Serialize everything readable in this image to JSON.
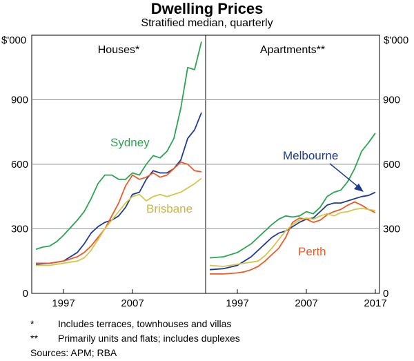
{
  "title": "Dwelling Prices",
  "subtitle": "Stratified median, quarterly",
  "unit_label_left": "$'000",
  "unit_label_right": "$'000",
  "colors": {
    "sydney": "#2aa552",
    "melbourne": "#1f3a93",
    "perth": "#ee5a24",
    "brisbane": "#d4c54a",
    "grid": "#9a9a9a"
  },
  "notes": [
    {
      "mark": "*",
      "text": "Includes terraces, townhouses and villas"
    },
    {
      "mark": "**",
      "text": "Primarily units and flats; includes duplexes"
    }
  ],
  "sources": "Sources: APM; RBA",
  "chart_data": [
    {
      "type": "line",
      "panel_title": "Houses*",
      "ylim": [
        0,
        1200
      ],
      "yticks": [
        0,
        300,
        600,
        900
      ],
      "xlim": [
        1993,
        2017
      ],
      "xticks": [
        1997,
        2007
      ],
      "series_labels": {
        "sydney": "Sydney",
        "brisbane": "Brisbane"
      },
      "series": [
        {
          "name": "Sydney",
          "key": "sydney",
          "points": [
            [
              1993,
              205
            ],
            [
              1994,
              215
            ],
            [
              1995,
              220
            ],
            [
              1996,
              240
            ],
            [
              1997,
              270
            ],
            [
              1998,
              305
            ],
            [
              1999,
              340
            ],
            [
              2000,
              380
            ],
            [
              2001,
              440
            ],
            [
              2002,
              510
            ],
            [
              2003,
              550
            ],
            [
              2004,
              550
            ],
            [
              2005,
              530
            ],
            [
              2006,
              530
            ],
            [
              2007,
              560
            ],
            [
              2008,
              550
            ],
            [
              2009,
              600
            ],
            [
              2010,
              640
            ],
            [
              2011,
              630
            ],
            [
              2012,
              660
            ],
            [
              2013,
              720
            ],
            [
              2014,
              860
            ],
            [
              2015,
              1050
            ],
            [
              2016,
              1040
            ],
            [
              2017,
              1170
            ]
          ]
        },
        {
          "name": "Melbourne",
          "key": "melbourne",
          "points": [
            [
              1993,
              135
            ],
            [
              1995,
              140
            ],
            [
              1997,
              150
            ],
            [
              1998,
              170
            ],
            [
              1999,
              190
            ],
            [
              2000,
              230
            ],
            [
              2001,
              280
            ],
            [
              2002,
              310
            ],
            [
              2003,
              330
            ],
            [
              2004,
              340
            ],
            [
              2005,
              360
            ],
            [
              2006,
              400
            ],
            [
              2007,
              460
            ],
            [
              2008,
              470
            ],
            [
              2009,
              530
            ],
            [
              2010,
              570
            ],
            [
              2011,
              560
            ],
            [
              2012,
              560
            ],
            [
              2013,
              580
            ],
            [
              2014,
              620
            ],
            [
              2015,
              720
            ],
            [
              2016,
              760
            ],
            [
              2017,
              840
            ]
          ]
        },
        {
          "name": "Perth",
          "key": "perth",
          "points": [
            [
              1993,
              140
            ],
            [
              1995,
              140
            ],
            [
              1997,
              150
            ],
            [
              1998,
              160
            ],
            [
              1999,
              170
            ],
            [
              2000,
              190
            ],
            [
              2001,
              220
            ],
            [
              2002,
              260
            ],
            [
              2003,
              300
            ],
            [
              2004,
              360
            ],
            [
              2005,
              420
            ],
            [
              2006,
              500
            ],
            [
              2007,
              550
            ],
            [
              2008,
              530
            ],
            [
              2009,
              540
            ],
            [
              2010,
              560
            ],
            [
              2011,
              540
            ],
            [
              2012,
              550
            ],
            [
              2013,
              580
            ],
            [
              2014,
              610
            ],
            [
              2015,
              600
            ],
            [
              2016,
              570
            ],
            [
              2017,
              565
            ]
          ]
        },
        {
          "name": "Brisbane",
          "key": "brisbane",
          "points": [
            [
              1993,
              130
            ],
            [
              1995,
              130
            ],
            [
              1997,
              140
            ],
            [
              1998,
              145
            ],
            [
              1999,
              150
            ],
            [
              2000,
              165
            ],
            [
              2001,
              200
            ],
            [
              2002,
              250
            ],
            [
              2003,
              300
            ],
            [
              2004,
              340
            ],
            [
              2005,
              380
            ],
            [
              2006,
              420
            ],
            [
              2007,
              450
            ],
            [
              2008,
              460
            ],
            [
              2009,
              430
            ],
            [
              2010,
              450
            ],
            [
              2011,
              460
            ],
            [
              2012,
              450
            ],
            [
              2013,
              460
            ],
            [
              2014,
              470
            ],
            [
              2015,
              490
            ],
            [
              2016,
              510
            ],
            [
              2017,
              535
            ]
          ]
        }
      ]
    },
    {
      "type": "line",
      "panel_title": "Apartments**",
      "ylim": [
        0,
        1200
      ],
      "yticks": [
        0,
        300,
        600,
        900
      ],
      "xlim": [
        1993,
        2017
      ],
      "xticks": [
        1997,
        2007,
        2017
      ],
      "series_labels": {
        "melbourne": "Melbourne",
        "perth": "Perth"
      },
      "series": [
        {
          "name": "Sydney",
          "key": "sydney",
          "points": [
            [
              1993,
              165
            ],
            [
              1995,
              170
            ],
            [
              1997,
              190
            ],
            [
              1998,
              210
            ],
            [
              1999,
              230
            ],
            [
              2000,
              260
            ],
            [
              2001,
              290
            ],
            [
              2002,
              320
            ],
            [
              2003,
              345
            ],
            [
              2004,
              360
            ],
            [
              2005,
              355
            ],
            [
              2006,
              360
            ],
            [
              2007,
              380
            ],
            [
              2008,
              370
            ],
            [
              2009,
              400
            ],
            [
              2010,
              450
            ],
            [
              2011,
              470
            ],
            [
              2012,
              480
            ],
            [
              2013,
              520
            ],
            [
              2014,
              580
            ],
            [
              2015,
              660
            ],
            [
              2016,
              700
            ],
            [
              2017,
              745
            ]
          ]
        },
        {
          "name": "Melbourne",
          "key": "melbourne",
          "points": [
            [
              1993,
              110
            ],
            [
              1995,
              115
            ],
            [
              1997,
              130
            ],
            [
              1998,
              150
            ],
            [
              1999,
              170
            ],
            [
              2000,
              200
            ],
            [
              2001,
              230
            ],
            [
              2002,
              260
            ],
            [
              2003,
              280
            ],
            [
              2004,
              290
            ],
            [
              2005,
              310
            ],
            [
              2006,
              330
            ],
            [
              2007,
              345
            ],
            [
              2008,
              350
            ],
            [
              2009,
              380
            ],
            [
              2010,
              410
            ],
            [
              2011,
              420
            ],
            [
              2012,
              420
            ],
            [
              2013,
              430
            ],
            [
              2014,
              440
            ],
            [
              2015,
              450
            ],
            [
              2016,
              455
            ],
            [
              2017,
              470
            ]
          ]
        },
        {
          "name": "Perth",
          "key": "perth",
          "points": [
            [
              1993,
              90
            ],
            [
              1995,
              90
            ],
            [
              1997,
              95
            ],
            [
              1998,
              100
            ],
            [
              1999,
              110
            ],
            [
              2000,
              125
            ],
            [
              2001,
              150
            ],
            [
              2002,
              180
            ],
            [
              2003,
              210
            ],
            [
              2004,
              260
            ],
            [
              2005,
              330
            ],
            [
              2006,
              350
            ],
            [
              2007,
              345
            ],
            [
              2008,
              330
            ],
            [
              2009,
              340
            ],
            [
              2010,
              365
            ],
            [
              2011,
              380
            ],
            [
              2012,
              390
            ],
            [
              2013,
              410
            ],
            [
              2014,
              425
            ],
            [
              2015,
              410
            ],
            [
              2016,
              390
            ],
            [
              2017,
              375
            ]
          ]
        },
        {
          "name": "Brisbane",
          "key": "brisbane",
          "points": [
            [
              1993,
              130
            ],
            [
              1995,
              125
            ],
            [
              1997,
              135
            ],
            [
              1998,
              140
            ],
            [
              1999,
              145
            ],
            [
              2000,
              150
            ],
            [
              2001,
              175
            ],
            [
              2002,
              210
            ],
            [
              2003,
              250
            ],
            [
              2004,
              290
            ],
            [
              2005,
              320
            ],
            [
              2006,
              340
            ],
            [
              2007,
              350
            ],
            [
              2008,
              345
            ],
            [
              2009,
              360
            ],
            [
              2010,
              370
            ],
            [
              2011,
              360
            ],
            [
              2012,
              375
            ],
            [
              2013,
              380
            ],
            [
              2014,
              390
            ],
            [
              2015,
              395
            ],
            [
              2016,
              390
            ],
            [
              2017,
              385
            ]
          ]
        }
      ]
    }
  ]
}
